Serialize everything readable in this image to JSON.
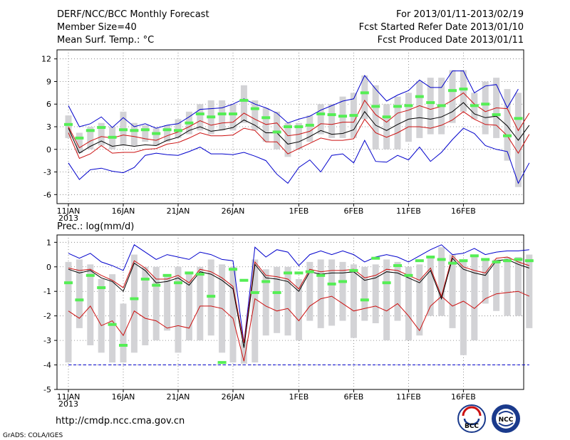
{
  "header": {
    "title_line1": "DERF/NCC/BCC Monthly Forecast",
    "title_line2": "Member Size=40",
    "title_line3": "Mean Surf. Temp.: °C",
    "right_line1": "For 2013/01/11-2013/02/19",
    "right_line2": "Fcst Started Refer Date 2013/01/10",
    "right_line3": "Fcst Produced Date 2013/01/11"
  },
  "footer": {
    "url": "http://cmdp.ncc.cma.gov.cn",
    "credit": "GrADS: COLA/IGES",
    "logo1_text": "BCC",
    "logo2_text": "NCC"
  },
  "colors": {
    "box": "#d3d3d6",
    "median": "#55ee55",
    "mean": "#000000",
    "inner": "#cc1111",
    "outer": "#0000cc",
    "grid": "#777777"
  },
  "chart_data": [
    {
      "type": "line",
      "title": "Mean Surf. Temp.: °C",
      "xlabel": "",
      "ylabel": "",
      "ylim": [
        -7.2,
        13.2
      ],
      "yticks": [
        -6,
        -3,
        0,
        3,
        6,
        9,
        12
      ],
      "x_tick_labels": [
        "11JAN",
        "16JAN",
        "21JAN",
        "26JAN",
        "1FEB",
        "6FEB",
        "11FEB",
        "16FEB"
      ],
      "x_tick_sublabel": "2013",
      "x_tick_days": [
        0,
        5,
        10,
        15,
        21,
        26,
        31,
        36
      ],
      "days": 40,
      "series": [
        {
          "name": "upper",
          "values": [
            5.8,
            3,
            3.4,
            4.3,
            2.9,
            4.2,
            3,
            3.4,
            2.8,
            3.2,
            3.4,
            4.3,
            5.3,
            5.4,
            5.5,
            6,
            6.7,
            6,
            5.5,
            4.8,
            3.5,
            4,
            4.4,
            5.2,
            5.8,
            6.4,
            6.7,
            9.8,
            8,
            6.4,
            7.2,
            7.8,
            9.2,
            8.2,
            8.2,
            10.4,
            10.4,
            7.5,
            8.4,
            8.6,
            5.5,
            8
          ]
        },
        {
          "name": "upper_inner",
          "values": [
            3,
            0.2,
            1.1,
            1.7,
            1.5,
            1.9,
            1.7,
            1.4,
            1.2,
            1.8,
            2.3,
            3,
            3.8,
            3.2,
            3.5,
            3.6,
            4.8,
            4,
            3.3,
            3.5,
            1.8,
            2,
            2.4,
            3.4,
            3.3,
            3.6,
            3.6,
            6.5,
            4.6,
            3.6,
            4.8,
            5.2,
            5.8,
            5.3,
            5.7,
            6.5,
            7.5,
            6,
            5,
            5.5,
            5.4,
            2.5,
            4.8
          ]
        },
        {
          "name": "mean",
          "values": [
            2.8,
            -0.5,
            0.4,
            1.1,
            0.4,
            0.6,
            0.4,
            0.6,
            0.5,
            1.2,
            1.6,
            2.5,
            3,
            2.4,
            2.6,
            2.9,
            3.9,
            3.2,
            2.2,
            2.2,
            0.7,
            1,
            1.7,
            2.5,
            2,
            2.1,
            2.6,
            5,
            3.2,
            2.5,
            3.3,
            4,
            4.2,
            4,
            4.3,
            5,
            6.2,
            4.7,
            4.2,
            4.4,
            3.1,
            1.2,
            3.2
          ]
        },
        {
          "name": "lower_inner",
          "values": [
            2.2,
            -1.2,
            -0.6,
            0.5,
            -0.5,
            -0.4,
            -0.4,
            0,
            0.1,
            0.7,
            0.9,
            1.5,
            2.2,
            1.8,
            1.8,
            1.9,
            2.8,
            2.5,
            1,
            1,
            -0.6,
            0.1,
            0.8,
            1.5,
            1.2,
            1.2,
            1.4,
            4,
            2.2,
            1.6,
            2.2,
            3,
            3,
            2.8,
            3.2,
            3.9,
            5,
            4,
            3.3,
            3.2,
            1.8,
            -0.5,
            2
          ]
        },
        {
          "name": "lower",
          "values": [
            -1.8,
            -4,
            -2.7,
            -2.5,
            -2.9,
            -3.1,
            -2.4,
            -0.8,
            -0.5,
            -0.7,
            -0.8,
            -0.3,
            0.3,
            -0.6,
            -0.6,
            -0.7,
            -0.4,
            -0.9,
            -1.5,
            -3.3,
            -4.5,
            -2.4,
            -1.4,
            -3,
            -0.8,
            -0.6,
            -1.8,
            1.2,
            -1.6,
            -1.7,
            -0.8,
            -1.4,
            0.3,
            -1.6,
            -0.4,
            1.3,
            2.8,
            2.1,
            0.5,
            0,
            -0.3,
            -4.5,
            -1.8
          ]
        },
        {
          "name": "median",
          "values": [
            3.3,
            1.5,
            2.5,
            2.9,
            1.6,
            2.6,
            2.5,
            2.6,
            2.1,
            2.6,
            2.5,
            3.5,
            4.7,
            4.3,
            4.7,
            4.7,
            6.5,
            5.4,
            4.2,
            2.3,
            3,
            3,
            3.2,
            4.7,
            4.6,
            4.4,
            4.5,
            7.5,
            5.7,
            4.3,
            5.7,
            5.8,
            7,
            6.2,
            5.8,
            7.8,
            8,
            5.8,
            6,
            4.6,
            1.8,
            4.1
          ]
        },
        {
          "name": "box_top",
          "values": [
            4.5,
            2.2,
            3,
            3.5,
            3,
            5,
            3.5,
            3.2,
            2.8,
            3.2,
            4,
            5,
            6,
            6.5,
            6.5,
            6,
            8.5,
            6.5,
            5.5,
            5,
            3.5,
            3.5,
            4.5,
            6,
            6,
            7,
            7.5,
            9.8,
            8.5,
            6,
            7,
            7.5,
            9,
            9.5,
            9.5,
            10.5,
            10.5,
            7.5,
            9,
            9.5,
            8,
            7.5
          ]
        },
        {
          "name": "box_bottom",
          "values": [
            1.5,
            -0.5,
            0,
            0.5,
            0,
            0.5,
            0.5,
            1,
            0.5,
            1,
            1.5,
            2,
            2.5,
            2,
            2.5,
            2.5,
            3.5,
            2.5,
            1,
            0,
            -1,
            0,
            1,
            2,
            1.5,
            1.5,
            1.5,
            4,
            0,
            0,
            0,
            1,
            1.5,
            2,
            2,
            3.5,
            5,
            4,
            2,
            1.5,
            -1.5,
            -5,
            -1
          ]
        }
      ]
    },
    {
      "type": "line",
      "title": "Prec.: log(mm/d)",
      "xlabel": "",
      "ylabel": "",
      "ylim": [
        -5,
        1.3
      ],
      "yticks": [
        -5,
        -4,
        -3,
        -2,
        -1,
        0,
        1
      ],
      "x_tick_labels": [
        "11JAN",
        "16JAN",
        "21JAN",
        "26JAN",
        "1FEB",
        "6FEB",
        "11FEB",
        "16FEB"
      ],
      "x_tick_sublabel": "2013",
      "x_tick_days": [
        0,
        5,
        10,
        15,
        21,
        26,
        31,
        36
      ],
      "days": 40,
      "series": [
        {
          "name": "upper",
          "values": [
            0.55,
            0.35,
            0.55,
            0.2,
            0.05,
            -0.15,
            0.9,
            0.6,
            0.3,
            0.5,
            0.4,
            0.3,
            0.6,
            0.5,
            0.3,
            0.25,
            -3.1,
            0.8,
            0.4,
            0.7,
            0.6,
            0.05,
            0.5,
            0.65,
            0.5,
            0.65,
            0.5,
            0.2,
            0.4,
            0.5,
            0.4,
            0.2,
            0.45,
            0.7,
            0.9,
            0.5,
            0.55,
            0.75,
            0.5,
            0.6,
            0.65,
            0.65,
            0.7
          ]
        },
        {
          "name": "mean",
          "values": [
            -0.1,
            -0.25,
            -0.15,
            -0.45,
            -0.6,
            -1,
            0.15,
            -0.15,
            -0.65,
            -0.6,
            -0.45,
            -0.75,
            -0.2,
            -0.3,
            -0.55,
            -0.9,
            -3.3,
            0.1,
            -0.45,
            -0.5,
            -0.6,
            -1,
            -0.2,
            -0.3,
            -0.25,
            -0.25,
            -0.2,
            -0.55,
            -0.45,
            -0.2,
            -0.25,
            -0.45,
            -0.65,
            -0.15,
            -1.3,
            0.35,
            -0.1,
            -0.25,
            -0.35,
            0.25,
            0.3,
            0.1,
            -0.05
          ]
        },
        {
          "name": "upper_inner",
          "values": [
            -0.05,
            -0.15,
            -0.1,
            -0.35,
            -0.55,
            -0.85,
            0.25,
            -0.05,
            -0.5,
            -0.5,
            -0.35,
            -0.65,
            -0.1,
            -0.2,
            -0.45,
            -0.8,
            -3.1,
            0.2,
            -0.35,
            -0.4,
            -0.5,
            -0.9,
            -0.1,
            -0.2,
            -0.15,
            -0.15,
            -0.1,
            -0.45,
            -0.35,
            -0.1,
            -0.15,
            -0.35,
            -0.55,
            -0.05,
            -1.2,
            0.45,
            0,
            -0.15,
            -0.25,
            0.35,
            0.4,
            0.2,
            0.05
          ]
        },
        {
          "name": "lower_inner",
          "values": [
            -1.8,
            -2.1,
            -1.6,
            -2.4,
            -2.2,
            -2.8,
            -1.8,
            -2.1,
            -2.2,
            -2.5,
            -2.4,
            -2.5,
            -1.6,
            -1.6,
            -1.7,
            -2.1,
            -3.85,
            -1.3,
            -1.6,
            -1.8,
            -1.7,
            -2.2,
            -1.6,
            -1.3,
            -1.2,
            -1.5,
            -1.8,
            -1.7,
            -1.6,
            -1.8,
            -1.5,
            -2,
            -2.6,
            -1.6,
            -1.2,
            -1.6,
            -1.4,
            -1.7,
            -1.3,
            -1.1,
            -1.05,
            -1,
            -1.2
          ]
        },
        {
          "name": "lower",
          "values": [
            -4,
            -4,
            -4,
            -4,
            -4,
            -4,
            -4,
            -4,
            -4,
            -4,
            -4,
            -4,
            -4,
            -4,
            -4,
            -4,
            -4,
            -4,
            -4,
            -4,
            -4,
            -4,
            -4,
            -4,
            -4,
            -4,
            -4,
            -4,
            -4,
            -4,
            -4,
            -4,
            -4,
            -4,
            -4,
            -4,
            -4,
            -4,
            -4,
            -4,
            -4,
            -4,
            -4
          ]
        },
        {
          "name": "median",
          "values": [
            -0.65,
            -1.35,
            -0.35,
            -0.85,
            -2.35,
            -3.2,
            -1.3,
            -0.5,
            -0.75,
            -0.35,
            -0.65,
            -0.25,
            -0.3,
            -1.2,
            -3.9,
            -0.1,
            -0.55,
            -1.05,
            -0.6,
            -1.05,
            -0.25,
            -0.25,
            -0.2,
            -0.35,
            -0.7,
            -0.6,
            -0.15,
            -1.35,
            0.35,
            -0.65,
            0.05,
            -0.35,
            0.25,
            0.4,
            0.3,
            0.15,
            0.25,
            0.45,
            0.3,
            0.2,
            0.25,
            0.3,
            0.25
          ]
        },
        {
          "name": "box_top",
          "values": [
            0.2,
            0.3,
            0.1,
            -0.5,
            -0.3,
            -1.5,
            0.5,
            0,
            0,
            -0.3,
            0,
            -0.3,
            0,
            0.3,
            0.1,
            0,
            -3,
            0.3,
            -0.1,
            0,
            0,
            -0.5,
            0.2,
            0.3,
            0.3,
            0.2,
            0.1,
            0,
            0.1,
            0.3,
            0.2,
            0,
            0.1,
            0.4,
            0.8,
            0.5,
            0.3,
            0.5,
            0.3,
            0.3,
            0.4,
            0.4,
            0.5
          ]
        },
        {
          "name": "box_bottom",
          "values": [
            -3.9,
            -2.5,
            -3.2,
            -3.5,
            -3.9,
            -3.9,
            -3.5,
            -3.2,
            -3,
            -2.6,
            -3.5,
            -3,
            -3,
            -2.8,
            -3.5,
            -3.9,
            -3.95,
            -3.9,
            -2.8,
            -2.7,
            -2.8,
            -3,
            -2.2,
            -2.5,
            -2.4,
            -2.2,
            -2.9,
            -2.2,
            -2.3,
            -3,
            -2.2,
            -3,
            -2.8,
            -2,
            -2,
            -2.5,
            -3.6,
            -3,
            -1.5,
            -1.8,
            -2,
            -2,
            -2.5
          ]
        }
      ]
    }
  ]
}
